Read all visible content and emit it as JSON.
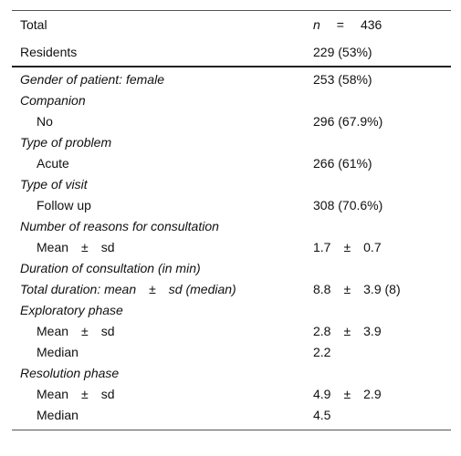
{
  "header": {
    "total_label": "Total",
    "total_value_n": "n",
    "total_value_eq": "=",
    "total_value_num": "436",
    "residents_label": "Residents",
    "residents_value": "229 (53%)"
  },
  "rows": [
    {
      "label": "Gender of patient: female",
      "value": "253 (58%)"
    },
    {
      "label": "Companion",
      "value": ""
    },
    {
      "label": "No",
      "value": "296 (67.9%)"
    },
    {
      "label": "Type of problem",
      "value": ""
    },
    {
      "label": "Acute",
      "value": "266 (61%)"
    },
    {
      "label": "Type of visit",
      "value": ""
    },
    {
      "label": "Follow up",
      "value": "308 (70.6%)"
    },
    {
      "label": "Number of reasons for consultation",
      "value": ""
    },
    {
      "label": "Mean ± sd",
      "value": "1.7 ± 0.7"
    },
    {
      "label": "Duration of consultation (in min)",
      "value": ""
    },
    {
      "label": "Total duration: mean ± sd (median)",
      "value": "8.8 ± 3.9 (8)"
    },
    {
      "label": "Exploratory phase",
      "value": ""
    },
    {
      "label": "Mean ± sd",
      "value": "2.8 ± 3.9"
    },
    {
      "label": "Median",
      "value": "2.2"
    },
    {
      "label": "Resolution phase",
      "value": ""
    },
    {
      "label": "Mean ± sd",
      "value": "4.9 ± 2.9"
    },
    {
      "label": "Median",
      "value": "4.5"
    }
  ]
}
